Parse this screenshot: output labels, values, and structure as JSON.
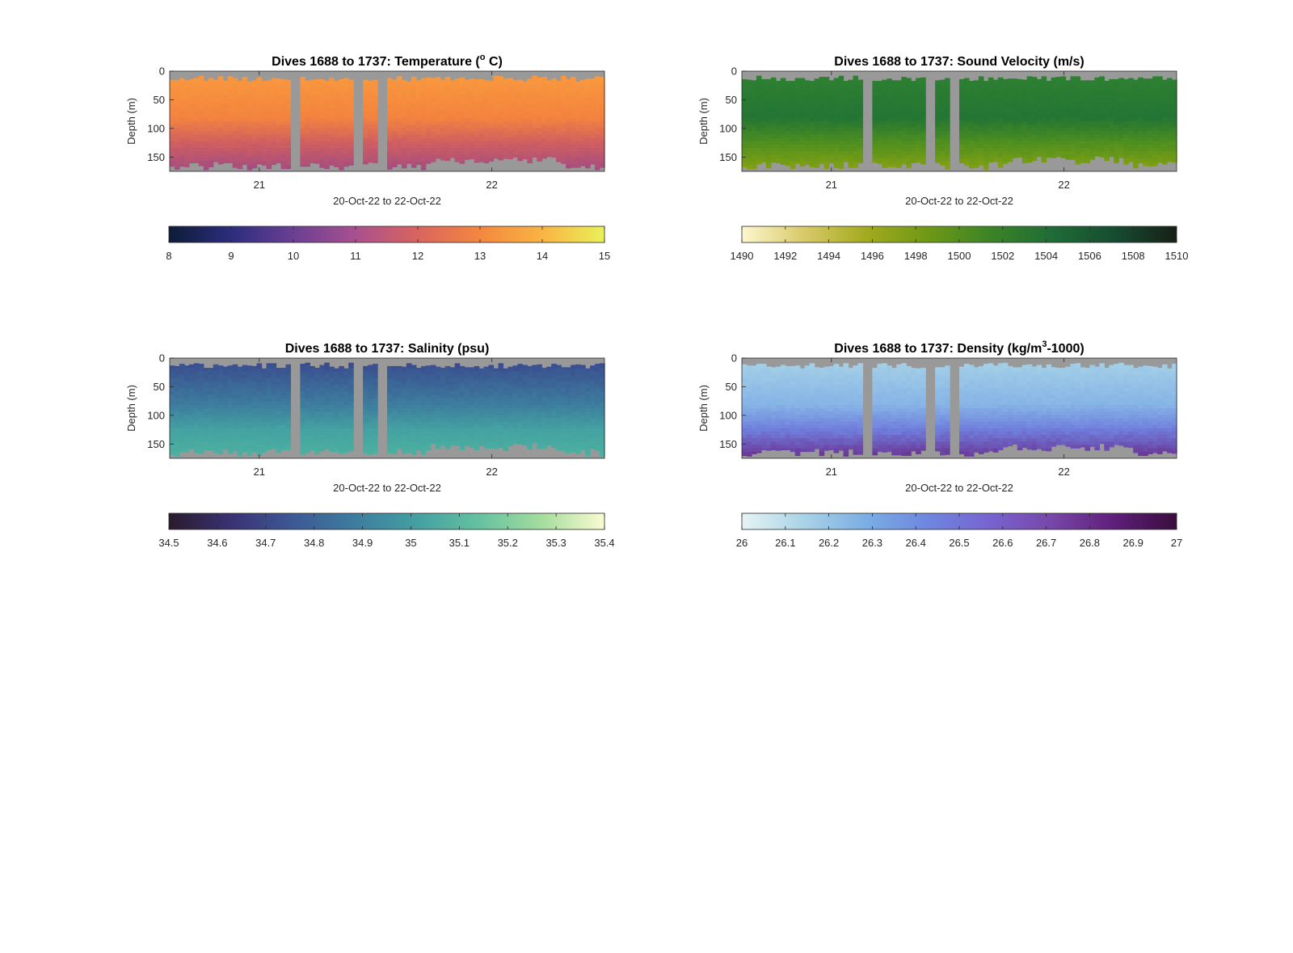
{
  "chart_data": [
    {
      "type": "heatmap",
      "title_main": "Dives 1688 to 1737: Temperature (",
      "title_sup": "o",
      "title_tail": " C)",
      "ylabel": "Depth (m)",
      "xlabel": "20-Oct-22 to 22-Oct-22",
      "yticks": [
        0,
        50,
        100,
        150
      ],
      "ylim": [
        0,
        175
      ],
      "xticks": [
        "21",
        "22"
      ],
      "colorbar": {
        "ticks": [
          "8",
          "9",
          "10",
          "11",
          "12",
          "13",
          "14",
          "15"
        ],
        "colors": [
          "#0c1d36",
          "#2c2d7c",
          "#6a3f93",
          "#a8508f",
          "#d9645f",
          "#f4873f",
          "#f9b443",
          "#e9f159"
        ]
      },
      "fill": {
        "top": "#f99a3f",
        "mid": "#f3833e",
        "deep": "#cf5f61",
        "bottom": "#9f4a84",
        "gap": "#999999",
        "bg": "#999999"
      }
    },
    {
      "type": "heatmap",
      "title_main": "Dives 1688 to 1737: Sound Velocity (m/s)",
      "title_sup": "",
      "title_tail": "",
      "ylabel": "Depth (m)",
      "xlabel": "20-Oct-22 to 22-Oct-22",
      "yticks": [
        0,
        50,
        100,
        150
      ],
      "ylim": [
        0,
        175
      ],
      "xticks": [
        "21",
        "22"
      ],
      "colorbar": {
        "ticks": [
          "1490",
          "1492",
          "1494",
          "1496",
          "1498",
          "1500",
          "1502",
          "1504",
          "1506",
          "1508",
          "1510"
        ],
        "colors": [
          "#fdf7cf",
          "#d9c96a",
          "#a3aa1e",
          "#6e9816",
          "#3b8427",
          "#1e6c36",
          "#164c31",
          "#171f17"
        ]
      },
      "fill": {
        "top": "#2f8131",
        "mid": "#237534",
        "deep": "#4f8f1f",
        "bottom": "#8ca411",
        "gap": "#999999",
        "bg": "#999999"
      }
    },
    {
      "type": "heatmap",
      "title_main": "Dives 1688 to 1737: Salinity (psu)",
      "title_sup": "",
      "title_tail": "",
      "ylabel": "Depth (m)",
      "xlabel": "20-Oct-22 to 22-Oct-22",
      "yticks": [
        0,
        50,
        100,
        150
      ],
      "ylim": [
        0,
        175
      ],
      "xticks": [
        "21",
        "22"
      ],
      "colorbar": {
        "ticks": [
          "34.5",
          "34.6",
          "34.7",
          "34.8",
          "34.9",
          "35",
          "35.1",
          "35.2",
          "35.3",
          "35.4"
        ],
        "colors": [
          "#2a1b2c",
          "#3a3273",
          "#3d5995",
          "#3d7d9e",
          "#44a0a2",
          "#65c2a0",
          "#a5dd9e",
          "#fbfbd1"
        ]
      },
      "fill": {
        "top": "#3a4a8e",
        "mid": "#3d7d9e",
        "deep": "#44a2a2",
        "bottom": "#4fb39f",
        "gap": "#999999",
        "bg": "#999999"
      }
    },
    {
      "type": "heatmap",
      "title_main": "Dives 1688 to 1737: Density (kg/m",
      "title_sup": "3",
      "title_tail": "-1000)",
      "ylabel": "Depth (m)",
      "xlabel": "20-Oct-22 to 22-Oct-22",
      "yticks": [
        0,
        50,
        100,
        150
      ],
      "ylim": [
        0,
        175
      ],
      "xticks": [
        "21",
        "22"
      ],
      "colorbar": {
        "ticks": [
          "26",
          "26.1",
          "26.2",
          "26.3",
          "26.4",
          "26.5",
          "26.6",
          "26.7",
          "26.8",
          "26.9",
          "27"
        ],
        "colors": [
          "#e6f3f5",
          "#a9d3e6",
          "#7aaee4",
          "#6e86df",
          "#7863d0",
          "#7746a8",
          "#5e1f79",
          "#3a0d3d"
        ]
      },
      "fill": {
        "top": "#a6d1e7",
        "mid": "#86b4e6",
        "deep": "#6f7edc",
        "bottom": "#6a2b8c",
        "gap": "#999999",
        "bg": "#999999"
      }
    }
  ]
}
